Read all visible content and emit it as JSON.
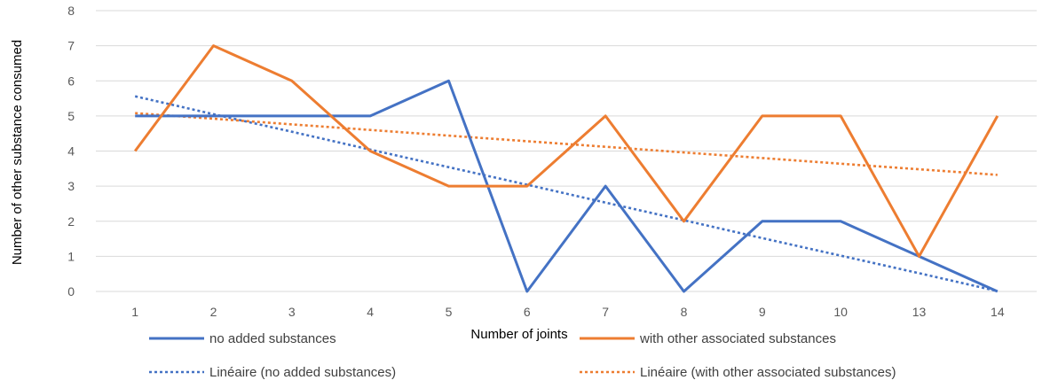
{
  "chart_data": {
    "type": "line",
    "xlabel": "Number of joints",
    "ylabel": "Number of other substance consumed",
    "categories": [
      "1",
      "2",
      "3",
      "4",
      "5",
      "6",
      "7",
      "8",
      "9",
      "10",
      "13",
      "14"
    ],
    "ylim": [
      0,
      8
    ],
    "yticks": [
      "0",
      "1",
      "2",
      "3",
      "4",
      "5",
      "6",
      "7",
      "8"
    ],
    "grid": true,
    "series": [
      {
        "name": "no added substances",
        "color": "#4472C4",
        "style": "solid",
        "values": [
          5,
          5,
          5,
          5,
          6,
          0,
          3,
          0,
          2,
          2,
          1,
          0
        ]
      },
      {
        "name": "with other associated substances",
        "color": "#ED7D31",
        "style": "solid",
        "values": [
          4,
          7,
          6,
          4,
          3,
          3,
          5,
          2,
          5,
          5,
          1,
          5
        ]
      },
      {
        "name": "Linéaire  (no added substances)",
        "color": "#4472C4",
        "style": "dotted",
        "values": [
          5.56,
          5.05,
          4.55,
          4.04,
          3.54,
          3.04,
          2.53,
          2.03,
          1.52,
          1.02,
          0.52,
          0.01
        ]
      },
      {
        "name": "Linéaire  (with other associated substances)",
        "color": "#ED7D31",
        "style": "dotted",
        "values": [
          5.08,
          4.92,
          4.76,
          4.6,
          4.44,
          4.28,
          4.12,
          3.96,
          3.8,
          3.64,
          3.48,
          3.32
        ]
      }
    ],
    "legend_position": "bottom"
  }
}
